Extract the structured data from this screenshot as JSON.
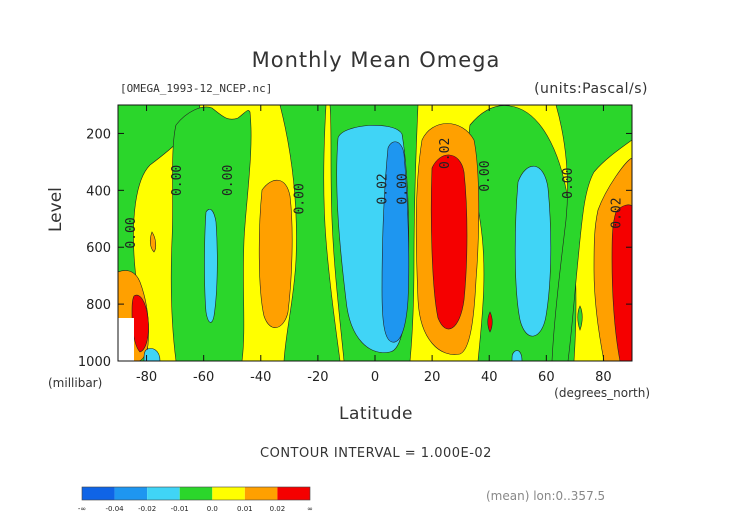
{
  "chart_data": {
    "type": "heatmap",
    "title": "Monthly Mean Omega",
    "file_label": "[OMEGA_1993-12_NCEP.nc]",
    "units_label": "(units:Pascal/s)",
    "xlabel": "Latitude",
    "xlabel_unit": "(degrees_north)",
    "ylabel": "Level",
    "ylabel_unit": "(millibar)",
    "xlim": [
      -90,
      90
    ],
    "ylim": [
      1000,
      100
    ],
    "x_ticks": [
      -80,
      -60,
      -40,
      -20,
      0,
      20,
      40,
      60,
      80
    ],
    "y_ticks": [
      200,
      400,
      600,
      800,
      1000
    ],
    "contour_interval_text": "CONTOUR INTERVAL = 1.000E-02",
    "mean_note": "(mean) lon:0..357.5",
    "colorbar": {
      "labels": [
        "-∞",
        "-0.04",
        "-0.02",
        "-0.01",
        "0.0",
        "0.01",
        "0.02",
        "∞"
      ],
      "colors": [
        "#0f64e6",
        "#1e96f0",
        "#40d4f6",
        "#2bd62b",
        "#ffff00",
        "#ffa000",
        "#f50000"
      ]
    },
    "contour_labels": [
      {
        "text": "0.00",
        "lat": -84,
        "level": 550
      },
      {
        "text": "0.00",
        "lat": -68,
        "level": 365
      },
      {
        "text": "0.00",
        "lat": -50,
        "level": 365
      },
      {
        "text": "0.00",
        "lat": -25,
        "level": 430
      },
      {
        "text": "0.02",
        "lat": 4,
        "level": 395
      },
      {
        "text": "0.00",
        "lat": 11,
        "level": 395
      },
      {
        "text": "0.02",
        "lat": 26,
        "level": 270
      },
      {
        "text": "0.00",
        "lat": 40,
        "level": 350
      },
      {
        "text": "0.00",
        "lat": 69,
        "level": 375
      },
      {
        "text": "0.02",
        "lat": 86,
        "level": 480
      }
    ],
    "regions": [
      {
        "name": "equatorial-descent-cyan",
        "level_class": "-0.02 to -0.01",
        "lat_range": [
          -12,
          4
        ],
        "level_range": [
          120,
          940
        ]
      },
      {
        "name": "equatorial-descent-blue",
        "level_class": "-0.04 to -0.02",
        "lat_range": [
          0,
          9
        ],
        "level_range": [
          250,
          910
        ]
      },
      {
        "name": "subtropical-ascent-orange",
        "level_class": "0.01 to 0.02",
        "lat_range": [
          18,
          43
        ],
        "level_range": [
          140,
          950
        ]
      },
      {
        "name": "subtropical-ascent-red",
        "level_class": "0.02 to inf",
        "lat_range": [
          21,
          34
        ],
        "level_range": [
          250,
          900
        ]
      },
      {
        "name": "southern-orange",
        "level_class": "0.01 to 0.02",
        "lat_range": [
          -45,
          -34
        ],
        "level_range": [
          360,
          870
        ]
      },
      {
        "name": "southern-cyan-60",
        "level_class": "-0.02 to -0.01",
        "lat_range": [
          -62,
          -56
        ],
        "level_range": [
          470,
          850
        ]
      },
      {
        "name": "northern-cyan-55",
        "level_class": "-0.02 to -0.01",
        "lat_range": [
          46,
          61
        ],
        "level_range": [
          290,
          910
        ]
      },
      {
        "name": "polar-north-red",
        "level_class": "0.02 to inf",
        "lat_range": [
          85,
          90
        ],
        "level_range": [
          450,
          1000
        ]
      }
    ]
  }
}
